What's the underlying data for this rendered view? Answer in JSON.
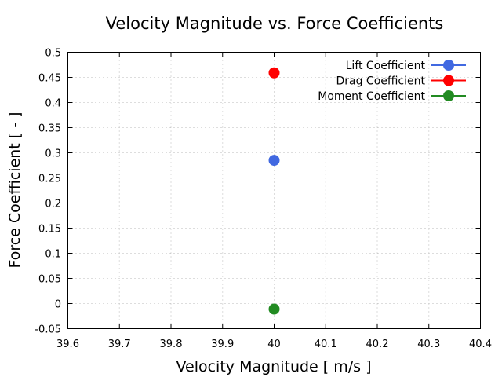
{
  "chart_data": {
    "type": "scatter",
    "title": "Velocity Magnitude vs. Force Coefficients",
    "xlabel": "Velocity Magnitude [ m/s ]",
    "ylabel": "Force Coefficient [ - ]",
    "xlim": [
      39.6,
      40.4
    ],
    "ylim": [
      -0.05,
      0.5
    ],
    "xticks": [
      "39.6",
      "39.7",
      "39.8",
      "39.9",
      "40",
      "40.1",
      "40.2",
      "40.3",
      "40.4"
    ],
    "yticks": [
      "-0.05",
      "0",
      "0.05",
      "0.1",
      "0.15",
      "0.2",
      "0.25",
      "0.3",
      "0.35",
      "0.4",
      "0.45",
      "0.5"
    ],
    "grid": true,
    "legend_position": "top-right",
    "series": [
      {
        "name": "Lift Coefficient",
        "color": "#4169e1",
        "x": [
          40
        ],
        "y": [
          0.285
        ]
      },
      {
        "name": "Drag Coefficient",
        "color": "#ff0000",
        "x": [
          40
        ],
        "y": [
          0.459
        ]
      },
      {
        "name": "Moment Coefficient",
        "color": "#228b22",
        "x": [
          40
        ],
        "y": [
          -0.011
        ]
      }
    ]
  }
}
